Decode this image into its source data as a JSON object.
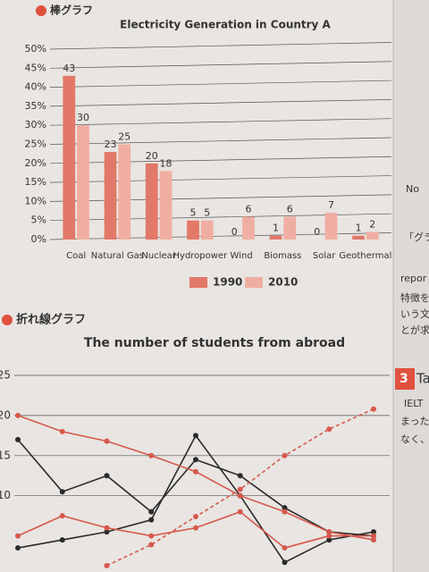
{
  "page": {
    "bar_heading": "棒グラフ",
    "line_heading": "折れ線グラフ",
    "side_texts": [
      "No",
      "「グラ",
      "repor",
      "特徴を",
      "いう文",
      "とが求",
      "3",
      "Ta",
      "IELT",
      "まった形",
      "なく、す"
    ]
  },
  "chart_data": [
    {
      "type": "bar",
      "title": "Electricity Generation in Country A",
      "categories": [
        "Coal",
        "Natural Gas",
        "Nuclear",
        "Hydropower",
        "Wind",
        "Biomass",
        "Solar",
        "Geothermal"
      ],
      "series": [
        {
          "name": "1990",
          "color": "#e27868",
          "values": [
            43,
            23,
            20,
            5,
            0,
            1,
            0,
            1
          ]
        },
        {
          "name": "2010",
          "color": "#f0aea2",
          "values": [
            30,
            25,
            18,
            5,
            6,
            6,
            7,
            2
          ]
        }
      ],
      "ylim": [
        0,
        50
      ],
      "yticks": [
        {
          "value": 0,
          "label": "0%"
        },
        {
          "value": 5,
          "label": "5%"
        },
        {
          "value": 10,
          "label": "10%"
        },
        {
          "value": 15,
          "label": "15%"
        },
        {
          "value": 20,
          "label": "20%"
        },
        {
          "value": 25,
          "label": "25%"
        },
        {
          "value": 30,
          "label": "30%"
        },
        {
          "value": 35,
          "label": "35%"
        },
        {
          "value": 40,
          "label": "40%"
        },
        {
          "value": 45,
          "label": "45%"
        },
        {
          "value": 50,
          "label": "50%"
        }
      ],
      "grid": true
    },
    {
      "type": "line",
      "title": "The number of students from abroad",
      "categories": [
        null,
        null,
        null,
        null,
        null,
        null,
        null,
        null,
        null
      ],
      "series": [
        {
          "color": "#2a2a2a",
          "style": "solid",
          "values": [
            17,
            10.5,
            12.5,
            8,
            14.5,
            12.5,
            8.5,
            5.5,
            5
          ]
        },
        {
          "color": "#2a2a2a",
          "style": "solid",
          "values": [
            3.5,
            4.5,
            5.5,
            7,
            17.5,
            10,
            1.7,
            4.5,
            5.5
          ]
        },
        {
          "color": "#d6584c",
          "style": "solid",
          "values": [
            20,
            18,
            16.8,
            15,
            13,
            10,
            8,
            5.5,
            4.5
          ]
        },
        {
          "color": "#d6584c",
          "style": "solid",
          "values": [
            5,
            7.5,
            6,
            5,
            6,
            8,
            3.5,
            5,
            5
          ]
        },
        {
          "color": "#d6584c",
          "style": "dashed",
          "values": [
            null,
            null,
            1.3,
            3.9,
            7.4,
            10.8,
            15,
            18.3,
            20.8
          ]
        }
      ],
      "ylim": [
        0.5,
        25
      ],
      "yticks": [
        10,
        15,
        20,
        25
      ],
      "grid": true
    }
  ]
}
